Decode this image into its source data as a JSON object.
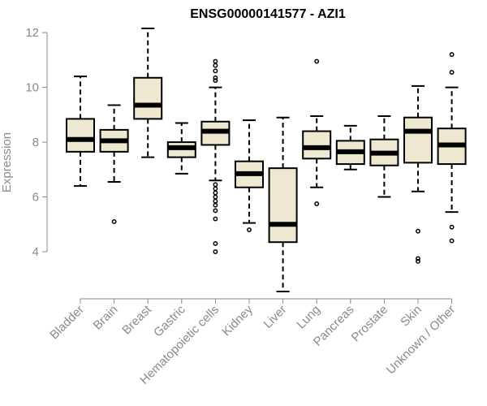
{
  "chart_data": {
    "type": "boxplot",
    "title": "ENSG00000141577 - AZI1",
    "xlabel": "",
    "ylabel": "Expression",
    "ylim": [
      2.4,
      12.3
    ],
    "yticks": [
      4,
      6,
      8,
      10,
      12
    ],
    "box_fill": "#eee8d0",
    "categories": [
      "Bladder",
      "Brain",
      "Breast",
      "Gastric",
      "Hematopoietic cells",
      "Kidney",
      "Liver",
      "Lung",
      "Pancreas",
      "Prostate",
      "Skin",
      "Unknown / Other"
    ],
    "boxes": [
      {
        "label": "Bladder",
        "whisker_low": 6.4,
        "q1": 7.65,
        "median": 8.1,
        "q3": 8.85,
        "whisker_high": 10.4,
        "outliers": []
      },
      {
        "label": "Brain",
        "whisker_low": 6.55,
        "q1": 7.65,
        "median": 8.05,
        "q3": 8.45,
        "whisker_high": 9.35,
        "outliers": [
          5.1
        ]
      },
      {
        "label": "Breast",
        "whisker_low": 7.45,
        "q1": 8.85,
        "median": 9.35,
        "q3": 10.35,
        "whisker_high": 12.15,
        "outliers": []
      },
      {
        "label": "Gastric",
        "whisker_low": 6.85,
        "q1": 7.45,
        "median": 7.8,
        "q3": 8.0,
        "whisker_high": 8.7,
        "outliers": []
      },
      {
        "label": "Hematopoietic cells",
        "whisker_low": 6.6,
        "q1": 7.9,
        "median": 8.4,
        "q3": 8.75,
        "whisker_high": 10.0,
        "outliers": [
          10.95,
          10.8,
          10.6,
          10.35,
          10.25,
          6.45,
          6.3,
          6.15,
          6.0,
          5.85,
          5.7,
          5.5,
          5.2,
          4.3,
          4.0
        ]
      },
      {
        "label": "Kidney",
        "whisker_low": 5.05,
        "q1": 6.35,
        "median": 6.85,
        "q3": 7.3,
        "whisker_high": 8.8,
        "outliers": [
          4.8
        ]
      },
      {
        "label": "Liver",
        "whisker_low": 2.55,
        "q1": 4.35,
        "median": 5.0,
        "q3": 7.05,
        "whisker_high": 8.9,
        "outliers": []
      },
      {
        "label": "Lung",
        "whisker_low": 6.35,
        "q1": 7.4,
        "median": 7.8,
        "q3": 8.4,
        "whisker_high": 8.95,
        "outliers": [
          10.95,
          5.75
        ]
      },
      {
        "label": "Pancreas",
        "whisker_low": 7.0,
        "q1": 7.2,
        "median": 7.65,
        "q3": 8.05,
        "whisker_high": 8.6,
        "outliers": []
      },
      {
        "label": "Prostate",
        "whisker_low": 6.0,
        "q1": 7.15,
        "median": 7.6,
        "q3": 8.1,
        "whisker_high": 8.95,
        "outliers": []
      },
      {
        "label": "Skin",
        "whisker_low": 6.2,
        "q1": 7.25,
        "median": 8.4,
        "q3": 8.9,
        "whisker_high": 10.05,
        "outliers": [
          4.75,
          3.75,
          3.65
        ]
      },
      {
        "label": "Unknown / Other",
        "whisker_low": 5.45,
        "q1": 7.2,
        "median": 7.9,
        "q3": 8.5,
        "whisker_high": 10.0,
        "outliers": [
          11.2,
          10.55,
          4.9,
          4.4
        ]
      }
    ]
  }
}
